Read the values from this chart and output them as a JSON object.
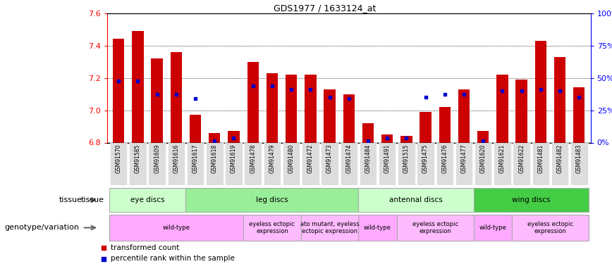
{
  "title": "GDS1977 / 1633124_at",
  "samples": [
    "GSM91570",
    "GSM91585",
    "GSM91609",
    "GSM91616",
    "GSM91617",
    "GSM91618",
    "GSM91619",
    "GSM91478",
    "GSM91479",
    "GSM91480",
    "GSM91472",
    "GSM91473",
    "GSM91474",
    "GSM91484",
    "GSM91491",
    "GSM91515",
    "GSM91475",
    "GSM91476",
    "GSM91477",
    "GSM91620",
    "GSM91621",
    "GSM91622",
    "GSM91481",
    "GSM91482",
    "GSM91483"
  ],
  "transformed_count": [
    7.44,
    7.49,
    7.32,
    7.36,
    6.97,
    6.86,
    6.87,
    7.3,
    7.23,
    7.22,
    7.22,
    7.13,
    7.1,
    6.92,
    6.85,
    6.84,
    6.99,
    7.02,
    7.13,
    6.87,
    7.22,
    7.19,
    7.43,
    7.33,
    7.14
  ],
  "percentile_rank": [
    7.18,
    7.18,
    7.1,
    7.1,
    7.07,
    6.81,
    6.83,
    7.15,
    7.15,
    7.13,
    7.13,
    7.08,
    7.07,
    6.81,
    6.83,
    6.83,
    7.08,
    7.1,
    7.1,
    6.81,
    7.12,
    7.12,
    7.13,
    7.12,
    7.08
  ],
  "ymin": 6.8,
  "ymax": 7.6,
  "yticks": [
    6.8,
    7.0,
    7.2,
    7.4,
    7.6
  ],
  "right_ytick_pct": [
    0,
    25,
    50,
    75,
    100
  ],
  "bar_color": "#cc0000",
  "percentile_color": "#0000cc",
  "tissue_groups": [
    {
      "label": "eye discs",
      "start": 0,
      "end": 4,
      "color": "#ccffcc"
    },
    {
      "label": "leg discs",
      "start": 4,
      "end": 13,
      "color": "#99ee99"
    },
    {
      "label": "antennal discs",
      "start": 13,
      "end": 19,
      "color": "#ccffcc"
    },
    {
      "label": "wing discs",
      "start": 19,
      "end": 25,
      "color": "#44cc44"
    }
  ],
  "genotype_groups": [
    {
      "label": "wild-type",
      "start": 0,
      "end": 7,
      "color": "#ffaaff"
    },
    {
      "label": "eyeless ectopic\nexpression",
      "start": 7,
      "end": 10,
      "color": "#ffbbff"
    },
    {
      "label": "ato mutant, eyeless\nectopic expression",
      "start": 10,
      "end": 13,
      "color": "#ffbbff"
    },
    {
      "label": "wild-type",
      "start": 13,
      "end": 15,
      "color": "#ffaaff"
    },
    {
      "label": "eyeless ectopic\nexpression",
      "start": 15,
      "end": 19,
      "color": "#ffbbff"
    },
    {
      "label": "wild-type",
      "start": 19,
      "end": 21,
      "color": "#ffaaff"
    },
    {
      "label": "eyeless ectopic\nexpression",
      "start": 21,
      "end": 25,
      "color": "#ffbbff"
    }
  ],
  "xtick_bg": "#dddddd"
}
